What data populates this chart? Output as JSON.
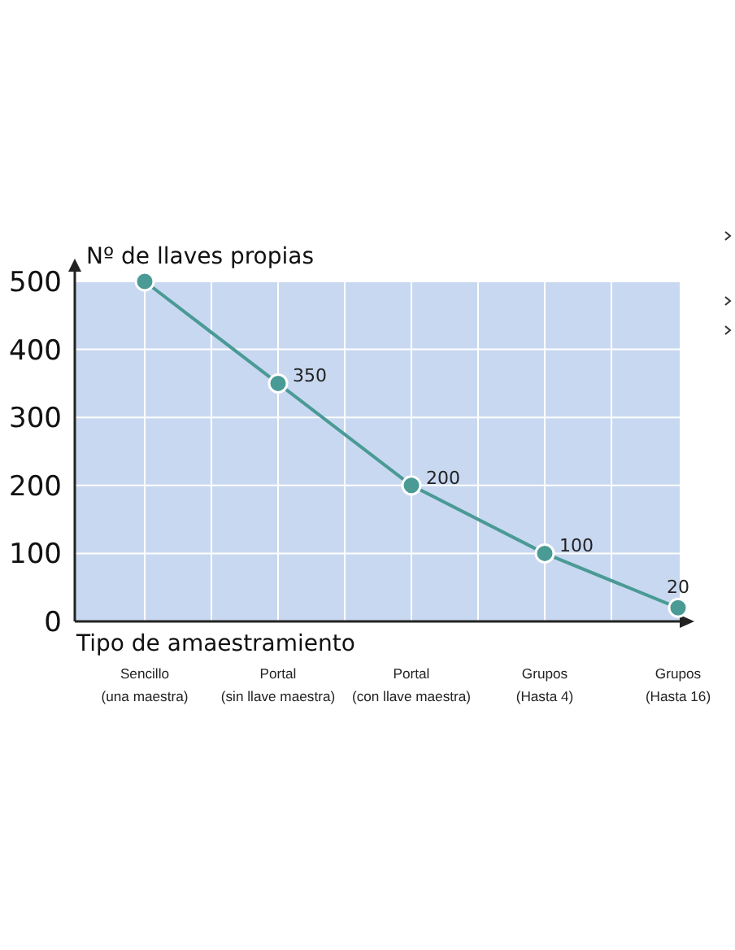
{
  "chart_data": {
    "type": "line",
    "ylabel": "Nº de llaves propias",
    "xlabel": "Tipo de amaestramiento",
    "categories": [
      "Sencillo\n(una maestra)",
      "Portal\n(sin llave maestra)",
      "Portal\n(con llave maestra)",
      "Grupos\n(Hasta 4)",
      "Grupos\n(Hasta 16)"
    ],
    "series": [
      {
        "color": "#4a9a96",
        "values": [
          500,
          350,
          200,
          100,
          20
        ],
        "value_labels": [
          null,
          "350",
          "200",
          "100",
          "20"
        ]
      }
    ],
    "ylim": [
      0,
      500
    ],
    "yticks": [
      0,
      100,
      200,
      300,
      400,
      500
    ],
    "grid": true,
    "marker": "circle",
    "line_style": "solid"
  }
}
